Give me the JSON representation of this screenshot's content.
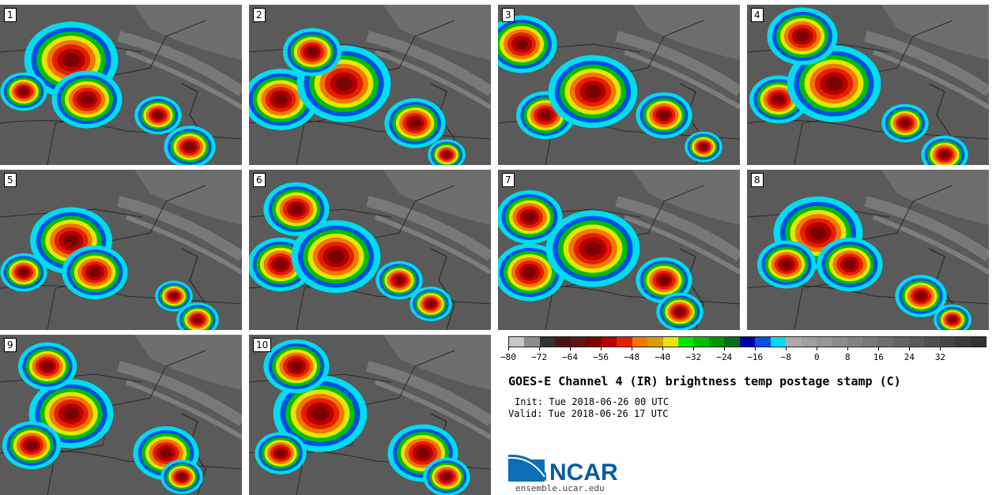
{
  "panels": [
    {
      "label": "1"
    },
    {
      "label": "2"
    },
    {
      "label": "3"
    },
    {
      "label": "4"
    },
    {
      "label": "5"
    },
    {
      "label": "6"
    },
    {
      "label": "7"
    },
    {
      "label": "8"
    },
    {
      "label": "9"
    },
    {
      "label": "10"
    }
  ],
  "colorbar": {
    "colors": [
      "#c8c8c8",
      "#8c8c8c",
      "#323232",
      "#4b1414",
      "#641414",
      "#7d0000",
      "#b40000",
      "#e61e00",
      "#f07800",
      "#d2a000",
      "#e6e600",
      "#00e600",
      "#00be00",
      "#009600",
      "#006e1e",
      "#0000a0",
      "#0050e6",
      "#00dcf0",
      "#aaaaaa",
      "#a0a0a0",
      "#969696",
      "#8c8c8c",
      "#828282",
      "#787878",
      "#6e6e6e",
      "#646464",
      "#5a5a5a",
      "#505050",
      "#464646",
      "#3c3c3c",
      "#323232"
    ],
    "tick_labels": [
      "−80",
      "−72",
      "−64",
      "−56",
      "−48",
      "−40",
      "−32",
      "−24",
      "−16",
      "−8",
      "0",
      "8",
      "16",
      "24",
      "32"
    ]
  },
  "title": "GOES-E Channel 4 (IR) brightness temp postage stamp (C)",
  "init": "Init: Tue 2018-06-26 00 UTC",
  "valid": "Valid: Tue 2018-06-26 17 UTC",
  "logo_text": "NCAR",
  "url": "ensemble.ucar.edu"
}
